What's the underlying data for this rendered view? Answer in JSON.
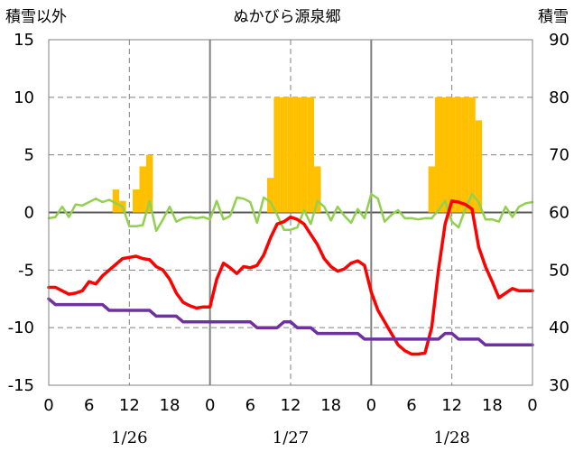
{
  "chart_data": {
    "type": "bar+line",
    "title": "ぬかびら源泉郷",
    "left_axis_label": "積雪以外",
    "right_axis_label": "積雪",
    "left_ylim": [
      -15,
      15
    ],
    "left_yticks": [
      15,
      10,
      5,
      0,
      -5,
      -10,
      -15
    ],
    "right_ylim": [
      30,
      90
    ],
    "right_yticks": [
      90,
      80,
      70,
      60,
      50,
      40,
      30
    ],
    "x_range_hours": [
      0,
      72
    ],
    "x_tick_labels": [
      "0",
      "6",
      "12",
      "18",
      "0",
      "6",
      "12",
      "18",
      "0",
      "6",
      "12",
      "18",
      "0"
    ],
    "date_labels": [
      "1/26",
      "1/27",
      "1/28"
    ],
    "grid": true,
    "series": [
      {
        "kind": "bar",
        "axis": "left",
        "color": "#FFC000",
        "x": [
          10,
          11,
          12,
          13,
          14,
          15,
          16,
          33,
          34,
          35,
          36,
          37,
          38,
          39,
          40,
          57,
          58,
          59,
          60,
          61,
          62,
          63,
          64
        ],
        "values": [
          2,
          1,
          0,
          2,
          4,
          5,
          0,
          3,
          10,
          10,
          10,
          10,
          10,
          10,
          4,
          4,
          10,
          10,
          10,
          10,
          10,
          10,
          8
        ]
      },
      {
        "kind": "line",
        "axis": "left",
        "color": "#92D050",
        "x": [
          0,
          1,
          2,
          3,
          4,
          5,
          6,
          7,
          8,
          9,
          10,
          11,
          12,
          13,
          14,
          15,
          16,
          17,
          18,
          19,
          20,
          21,
          22,
          23,
          24,
          25,
          26,
          27,
          28,
          29,
          30,
          31,
          32,
          33,
          34,
          35,
          36,
          37,
          38,
          39,
          40,
          41,
          42,
          43,
          44,
          45,
          46,
          47,
          48,
          49,
          50,
          51,
          52,
          53,
          54,
          55,
          56,
          57,
          58,
          59,
          60,
          61,
          62,
          63,
          64,
          65,
          66,
          67,
          68,
          69,
          70,
          71,
          72
        ],
        "values": [
          -0.5,
          -0.4,
          0.5,
          -0.4,
          0.7,
          0.6,
          0.9,
          1.2,
          0.9,
          1.1,
          0.8,
          0.5,
          -1.2,
          -1.2,
          -1.1,
          1.0,
          -1.6,
          -0.6,
          0.5,
          -0.8,
          -0.5,
          -0.4,
          -0.5,
          -0.4,
          -0.6,
          1.0,
          -0.6,
          -0.3,
          1.3,
          1.2,
          0.9,
          -0.9,
          1.3,
          0.9,
          -0.2,
          -1.5,
          -1.5,
          -1.3,
          0.2,
          -1.0,
          1.0,
          0.5,
          -0.7,
          0.5,
          -0.3,
          -0.9,
          0.3,
          -0.5,
          1.6,
          1.2,
          -0.8,
          -0.2,
          0.2,
          -0.5,
          -0.5,
          -0.6,
          -0.5,
          -0.5,
          0.2,
          1.0,
          -0.8,
          -1.3,
          0.3,
          1.6,
          0.9,
          -0.6,
          -0.6,
          -0.8,
          0.5,
          -0.4,
          0.5,
          0.8,
          0.9
        ]
      },
      {
        "kind": "line",
        "axis": "left",
        "color": "#FF0000",
        "x": [
          0,
          1,
          2,
          3,
          4,
          5,
          6,
          7,
          8,
          9,
          10,
          11,
          12,
          13,
          14,
          15,
          16,
          17,
          18,
          19,
          20,
          21,
          22,
          23,
          24,
          25,
          26,
          27,
          28,
          29,
          30,
          31,
          32,
          33,
          34,
          35,
          36,
          37,
          38,
          39,
          40,
          41,
          42,
          43,
          44,
          45,
          46,
          47,
          48,
          49,
          50,
          51,
          52,
          53,
          54,
          55,
          56,
          57,
          58,
          59,
          60,
          61,
          62,
          63,
          64,
          65,
          66,
          67,
          68,
          69,
          70,
          71,
          72
        ],
        "values": [
          -6.5,
          -6.5,
          -6.8,
          -7.1,
          -7.0,
          -6.8,
          -6.0,
          -6.2,
          -5.5,
          -5.0,
          -4.5,
          -4.0,
          -3.9,
          -3.8,
          -4.0,
          -4.1,
          -4.7,
          -5.0,
          -5.8,
          -7.0,
          -7.8,
          -8.1,
          -8.3,
          -8.2,
          -8.2,
          -5.8,
          -4.4,
          -4.8,
          -5.3,
          -4.7,
          -4.8,
          -4.6,
          -3.7,
          -2.2,
          -1.0,
          -0.8,
          -0.4,
          -0.6,
          -1.0,
          -1.9,
          -2.8,
          -4.0,
          -4.7,
          -5.1,
          -4.9,
          -4.4,
          -4.2,
          -4.6,
          -6.9,
          -8.5,
          -9.5,
          -10.5,
          -11.5,
          -12.0,
          -12.3,
          -12.3,
          -12.2,
          -10.0,
          -5.0,
          -1.0,
          1.0,
          0.9,
          0.7,
          0.3,
          -3.0,
          -4.7,
          -6.0,
          -7.4,
          -7.0,
          -6.6,
          -6.8,
          -6.8,
          -6.8
        ]
      },
      {
        "kind": "step-line",
        "axis": "left",
        "color": "#7030A0",
        "x": [
          0,
          1,
          8,
          9,
          15,
          16,
          19,
          20,
          30,
          31,
          34,
          35,
          36,
          37,
          39,
          40,
          46,
          47,
          58,
          59,
          60,
          61,
          64,
          65,
          72
        ],
        "values": [
          -7.5,
          -8.0,
          -8.0,
          -8.5,
          -8.5,
          -9.0,
          -9.0,
          -9.5,
          -9.5,
          -10.0,
          -10.0,
          -9.5,
          -9.5,
          -10.0,
          -10.0,
          -10.5,
          -10.5,
          -11.0,
          -11.0,
          -10.5,
          -10.5,
          -11.0,
          -11.0,
          -11.5,
          -11.5
        ]
      }
    ]
  }
}
